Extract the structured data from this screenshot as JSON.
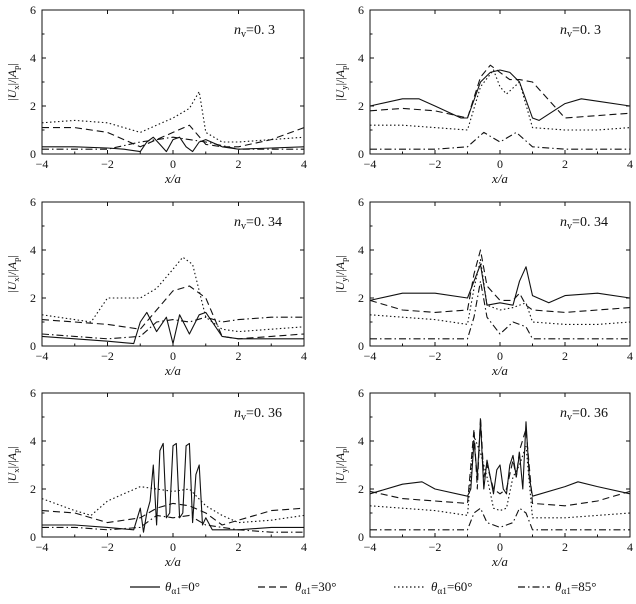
{
  "legend": [
    {
      "style": "solid",
      "label": "θα1=0°"
    },
    {
      "style": "dashed",
      "label": "θα1=30°"
    },
    {
      "style": "dotted",
      "label": "θα1=60°"
    },
    {
      "style": "dashdot",
      "label": "θα1=85°"
    }
  ],
  "chart_data": [
    {
      "type": "line",
      "xlabel": "x/a",
      "ylabel": "|Ux|/|Ap|",
      "annotation": "nv=0. 3",
      "xlim": [
        -4,
        4
      ],
      "ylim": [
        0,
        6
      ],
      "xticks": [
        "−4",
        "−2",
        "0",
        "2",
        "4"
      ],
      "yticks": [
        "0",
        "2",
        "4",
        "6"
      ],
      "series": [
        {
          "name": "θα1=0°",
          "style": "solid",
          "x": [
            -4,
            -3,
            -2,
            -1.5,
            -1,
            -0.8,
            -0.6,
            -0.4,
            -0.2,
            0,
            0.2,
            0.4,
            0.6,
            0.8,
            1,
            1.5,
            2,
            3,
            4
          ],
          "y": [
            0.3,
            0.3,
            0.25,
            0.2,
            0.1,
            0.5,
            0.7,
            0.4,
            0.1,
            0.6,
            0.7,
            0.3,
            0.1,
            0.5,
            0.6,
            0.3,
            0.2,
            0.25,
            0.3
          ]
        },
        {
          "name": "θα1=30°",
          "style": "dashed",
          "x": [
            -4,
            -3,
            -2,
            -1,
            -0.5,
            0,
            0.5,
            1,
            1.5,
            2,
            3,
            4
          ],
          "y": [
            1.1,
            1.1,
            0.9,
            0.3,
            0.6,
            0.9,
            1.2,
            0.4,
            0.3,
            0.3,
            0.6,
            1.1
          ]
        },
        {
          "name": "θα1=60°",
          "style": "dotted",
          "x": [
            -4,
            -3,
            -2,
            -1,
            -0.5,
            0,
            0.5,
            0.8,
            1,
            1.5,
            2,
            3,
            4
          ],
          "y": [
            1.3,
            1.4,
            1.3,
            0.9,
            1.2,
            1.5,
            1.9,
            2.6,
            0.9,
            0.5,
            0.5,
            0.6,
            0.7
          ]
        },
        {
          "name": "θα1=85°",
          "style": "dashdot",
          "x": [
            -4,
            -3,
            -2,
            -1,
            -0.5,
            0,
            0.5,
            1,
            2,
            3,
            4
          ],
          "y": [
            0.2,
            0.2,
            0.2,
            0.5,
            0.6,
            0.7,
            0.6,
            0.5,
            0.2,
            0.2,
            0.2
          ]
        }
      ]
    },
    {
      "type": "line",
      "xlabel": "x/a",
      "ylabel": "|Uy|/|Ap|",
      "annotation": "nv=0. 3",
      "xlim": [
        -4,
        4
      ],
      "ylim": [
        0,
        6
      ],
      "xticks": [
        "−4",
        "−2",
        "0",
        "2",
        "4"
      ],
      "yticks": [
        "0",
        "2",
        "4",
        "6"
      ],
      "series": [
        {
          "name": "θα1=0°",
          "style": "solid",
          "x": [
            -4,
            -3,
            -2.5,
            -2,
            -1.2,
            -1,
            -0.6,
            -0.3,
            0,
            0.3,
            0.6,
            1,
            1.2,
            2,
            2.5,
            3,
            4
          ],
          "y": [
            2.0,
            2.3,
            2.3,
            2.0,
            1.5,
            1.5,
            3.0,
            3.4,
            3.5,
            3.4,
            3.0,
            1.5,
            1.4,
            2.1,
            2.3,
            2.2,
            2.0
          ]
        },
        {
          "name": "θα1=30°",
          "style": "dashed",
          "x": [
            -4,
            -3,
            -2,
            -1,
            -0.6,
            -0.3,
            0,
            0.3,
            0.6,
            1,
            2,
            3,
            4
          ],
          "y": [
            1.8,
            1.9,
            1.8,
            1.5,
            3.2,
            3.7,
            3.4,
            3.1,
            3.1,
            3.0,
            1.5,
            1.6,
            1.7
          ]
        },
        {
          "name": "θα1=60°",
          "style": "dotted",
          "x": [
            -4,
            -3,
            -2,
            -1,
            -0.6,
            -0.2,
            0,
            0.2,
            0.6,
            1,
            2,
            3,
            4
          ],
          "y": [
            1.2,
            1.2,
            1.1,
            1.0,
            2.8,
            3.5,
            2.8,
            2.5,
            3.0,
            1.1,
            1.0,
            1.0,
            1.1
          ]
        },
        {
          "name": "θα1=85°",
          "style": "dashdot",
          "x": [
            -4,
            -3,
            -2,
            -1,
            -0.5,
            0,
            0.5,
            1,
            2,
            3,
            4
          ],
          "y": [
            0.2,
            0.2,
            0.2,
            0.3,
            0.9,
            0.5,
            0.9,
            0.3,
            0.2,
            0.2,
            0.2
          ]
        }
      ]
    },
    {
      "type": "line",
      "xlabel": "x/a",
      "ylabel": "|Ux|/|Ap|",
      "annotation": "nv=0. 34",
      "xlim": [
        -4,
        4
      ],
      "ylim": [
        0,
        6
      ],
      "xticks": [
        "−4",
        "−2",
        "0",
        "2",
        "4"
      ],
      "yticks": [
        "0",
        "2",
        "4",
        "6"
      ],
      "series": [
        {
          "name": "θα1=0°",
          "style": "solid",
          "x": [
            -4,
            -3,
            -2,
            -1.2,
            -1,
            -0.8,
            -0.5,
            -0.2,
            0,
            0.2,
            0.5,
            0.8,
            1,
            1.5,
            2,
            3,
            4
          ],
          "y": [
            0.4,
            0.3,
            0.2,
            0.1,
            1.0,
            1.4,
            0.6,
            1.2,
            0.1,
            1.3,
            0.5,
            1.3,
            1.4,
            0.4,
            0.3,
            0.3,
            0.3
          ]
        },
        {
          "name": "θα1=30°",
          "style": "dashed",
          "x": [
            -4,
            -3,
            -2,
            -1,
            -0.5,
            0,
            0.5,
            1,
            1.5,
            2,
            3,
            4
          ],
          "y": [
            1.1,
            1.0,
            0.9,
            0.7,
            1.5,
            2.3,
            2.5,
            2.0,
            0.4,
            0.3,
            0.4,
            0.5
          ]
        },
        {
          "name": "θα1=60°",
          "style": "dotted",
          "x": [
            -4,
            -3,
            -2.5,
            -2,
            -1,
            -0.5,
            0,
            0.3,
            0.6,
            1,
            1.5,
            2,
            3,
            4
          ],
          "y": [
            1.3,
            1.1,
            1.0,
            2.0,
            2.0,
            2.4,
            3.2,
            3.7,
            3.4,
            1.2,
            0.7,
            0.6,
            0.7,
            0.8
          ]
        },
        {
          "name": "θα1=85°",
          "style": "dashdot",
          "x": [
            -4,
            -3,
            -2,
            -1,
            -0.5,
            0,
            0.5,
            1,
            1.5,
            2,
            3,
            4
          ],
          "y": [
            0.5,
            0.4,
            0.3,
            0.4,
            1.0,
            1.1,
            1.0,
            1.2,
            1.0,
            1.1,
            1.2,
            1.2
          ]
        }
      ]
    },
    {
      "type": "line",
      "xlabel": "x/a",
      "ylabel": "|Uy|/|Ap|",
      "annotation": "nv=0. 34",
      "xlim": [
        -4,
        4
      ],
      "ylim": [
        0,
        6
      ],
      "xticks": [
        "−4",
        "−2",
        "0",
        "2",
        "4"
      ],
      "yticks": [
        "0",
        "2",
        "4",
        "6"
      ],
      "series": [
        {
          "name": "θα1=0°",
          "style": "solid",
          "x": [
            -4,
            -3,
            -2,
            -1,
            -0.8,
            -0.6,
            -0.4,
            0,
            0.4,
            0.6,
            0.8,
            1,
            1.5,
            2,
            3,
            4
          ],
          "y": [
            1.9,
            2.2,
            2.2,
            2.0,
            2.7,
            3.4,
            1.7,
            1.8,
            1.7,
            2.7,
            3.3,
            2.1,
            1.8,
            2.1,
            2.2,
            2.0
          ]
        },
        {
          "name": "θα1=30°",
          "style": "dashed",
          "x": [
            -4,
            -3,
            -2,
            -1,
            -0.8,
            -0.6,
            -0.4,
            0,
            0.4,
            0.6,
            0.8,
            1,
            2,
            3,
            4
          ],
          "y": [
            1.9,
            1.5,
            1.4,
            1.5,
            3.0,
            4.0,
            2.5,
            1.9,
            1.9,
            2.2,
            1.7,
            1.5,
            1.4,
            1.5,
            1.6
          ]
        },
        {
          "name": "θα1=60°",
          "style": "dotted",
          "x": [
            -4,
            -3,
            -2,
            -1,
            -0.8,
            -0.6,
            -0.4,
            0,
            0.4,
            0.8,
            1,
            2,
            3,
            4
          ],
          "y": [
            1.3,
            1.2,
            1.1,
            0.9,
            2.4,
            3.6,
            1.7,
            1.5,
            1.6,
            1.8,
            1.0,
            0.9,
            0.9,
            1.0
          ]
        },
        {
          "name": "θα1=85°",
          "style": "dashdot",
          "x": [
            -4,
            -3,
            -2,
            -1,
            -0.8,
            -0.6,
            -0.4,
            0,
            0.4,
            0.8,
            1,
            2,
            3,
            4
          ],
          "y": [
            0.3,
            0.3,
            0.3,
            0.3,
            1.2,
            2.7,
            1.2,
            0.5,
            1.0,
            0.8,
            0.3,
            0.3,
            0.3,
            0.3
          ]
        }
      ]
    },
    {
      "type": "line",
      "xlabel": "x/a",
      "ylabel": "|Ux|/|Ap|",
      "annotation": "nv=0. 36",
      "xlim": [
        -4,
        4
      ],
      "ylim": [
        0,
        6
      ],
      "xticks": [
        "−4",
        "−2",
        "0",
        "2",
        "4"
      ],
      "yticks": [
        "0",
        "2",
        "4",
        "6"
      ],
      "series": [
        {
          "name": "θα1=0°",
          "style": "solid",
          "x": [
            -4,
            -3,
            -2,
            -1.2,
            -1,
            -0.9,
            -0.8,
            -0.7,
            -0.6,
            -0.5,
            -0.4,
            -0.3,
            -0.2,
            -0.1,
            0,
            0.1,
            0.2,
            0.3,
            0.4,
            0.5,
            0.6,
            0.7,
            0.8,
            0.9,
            1,
            1.2,
            2,
            3,
            4
          ],
          "y": [
            0.5,
            0.5,
            0.4,
            0.3,
            1.2,
            0.2,
            1.0,
            1.5,
            3.0,
            0.5,
            3.6,
            3.9,
            0.8,
            1.0,
            3.8,
            3.9,
            0.8,
            1.0,
            3.8,
            3.9,
            0.6,
            2.6,
            3.0,
            0.5,
            0.8,
            0.3,
            0.3,
            0.4,
            0.4
          ]
        },
        {
          "name": "θα1=30°",
          "style": "dashed",
          "x": [
            -4,
            -3,
            -2,
            -1,
            -0.5,
            0,
            0.5,
            1,
            1.5,
            2,
            3,
            4
          ],
          "y": [
            1.1,
            1.0,
            0.6,
            0.8,
            1.2,
            1.4,
            1.3,
            1.0,
            0.5,
            0.7,
            1.1,
            1.2
          ]
        },
        {
          "name": "θα1=60°",
          "style": "dotted",
          "x": [
            -4,
            -3,
            -2.5,
            -2,
            -1,
            -0.5,
            0,
            0.5,
            1,
            1.5,
            2,
            3,
            4
          ],
          "y": [
            1.6,
            1.1,
            0.9,
            1.5,
            2.1,
            2.0,
            1.9,
            2.0,
            1.3,
            0.9,
            0.6,
            0.7,
            0.9
          ]
        },
        {
          "name": "θα1=85°",
          "style": "dashdot",
          "x": [
            -4,
            -3,
            -2,
            -1,
            -0.5,
            0,
            0.5,
            1,
            2,
            3,
            4
          ],
          "y": [
            0.4,
            0.4,
            0.3,
            0.4,
            0.9,
            0.8,
            0.9,
            0.5,
            0.3,
            0.2,
            0.2
          ]
        }
      ]
    },
    {
      "type": "line",
      "xlabel": "x/a",
      "ylabel": "|Uy|/|Ap|",
      "annotation": "nv=0. 36",
      "xlim": [
        -4,
        4
      ],
      "ylim": [
        0,
        6
      ],
      "xticks": [
        "−4",
        "−2",
        "0",
        "2",
        "4"
      ],
      "yticks": [
        "0",
        "2",
        "4",
        "6"
      ],
      "series": [
        {
          "name": "θα1=0°",
          "style": "solid",
          "x": [
            -4,
            -3,
            -2.4,
            -2,
            -1,
            -0.9,
            -0.8,
            -0.7,
            -0.6,
            -0.5,
            -0.4,
            -0.3,
            -0.2,
            -0.1,
            0,
            0.1,
            0.2,
            0.3,
            0.4,
            0.5,
            0.6,
            0.7,
            0.8,
            0.9,
            1,
            2,
            2.4,
            3,
            4
          ],
          "y": [
            1.8,
            2.2,
            2.3,
            2.0,
            1.7,
            2.0,
            4.0,
            2.5,
            4.8,
            2.0,
            3.2,
            2.5,
            1.8,
            2.8,
            3.0,
            2.0,
            1.8,
            3.0,
            3.4,
            2.5,
            3.5,
            2.0,
            4.8,
            2.5,
            1.7,
            2.1,
            2.3,
            2.1,
            1.8
          ]
        },
        {
          "name": "θα1=30°",
          "style": "dashed",
          "x": [
            -4,
            -3,
            -2,
            -1,
            -0.8,
            -0.7,
            -0.6,
            -0.5,
            -0.4,
            -0.2,
            0,
            0.2,
            0.4,
            0.5,
            0.6,
            0.8,
            1,
            2,
            3,
            4
          ],
          "y": [
            1.9,
            1.6,
            1.5,
            1.4,
            4.5,
            2.0,
            5.0,
            2.5,
            3.0,
            2.0,
            1.8,
            2.0,
            3.2,
            2.5,
            3.6,
            4.5,
            1.4,
            1.3,
            1.5,
            1.9
          ]
        },
        {
          "name": "θα1=60°",
          "style": "dotted",
          "x": [
            -4,
            -3,
            -2,
            -1,
            -0.8,
            -0.6,
            -0.4,
            -0.2,
            0,
            0.2,
            0.4,
            0.6,
            0.8,
            1,
            2,
            3,
            4
          ],
          "y": [
            1.3,
            1.2,
            1.1,
            0.9,
            4.2,
            3.5,
            2.5,
            1.2,
            1.1,
            1.2,
            2.5,
            3.0,
            3.8,
            0.8,
            0.8,
            0.9,
            1.0
          ]
        },
        {
          "name": "θα1=85°",
          "style": "dashdot",
          "x": [
            -4,
            -3,
            -2,
            -1,
            -0.8,
            -0.6,
            -0.4,
            0,
            0.4,
            0.6,
            0.8,
            1,
            2,
            3,
            4
          ],
          "y": [
            0.3,
            0.3,
            0.3,
            0.3,
            1.0,
            1.2,
            0.6,
            0.4,
            0.6,
            1.2,
            1.0,
            0.3,
            0.3,
            0.3,
            0.3
          ]
        }
      ]
    }
  ]
}
